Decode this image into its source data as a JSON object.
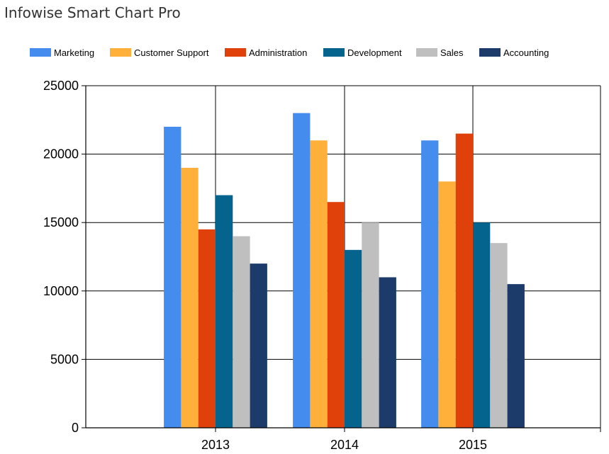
{
  "page": {
    "title": "Infowise Smart Chart Pro"
  },
  "chart_data": {
    "type": "bar",
    "title": "",
    "xlabel": "",
    "ylabel": "",
    "categories": [
      "2013",
      "2014",
      "2015"
    ],
    "ylim": [
      0,
      25000
    ],
    "yticks": [
      0,
      5000,
      10000,
      15000,
      20000,
      25000
    ],
    "grid": true,
    "legend_position": "top",
    "series": [
      {
        "name": "Marketing",
        "color": "#448cee",
        "values": [
          22000,
          23000,
          21000
        ]
      },
      {
        "name": "Customer Support",
        "color": "#ffb03b",
        "values": [
          19000,
          21000,
          18000
        ]
      },
      {
        "name": "Administration",
        "color": "#e0400a",
        "values": [
          14500,
          16500,
          21500
        ]
      },
      {
        "name": "Development",
        "color": "#05648e",
        "values": [
          17000,
          13000,
          15000
        ]
      },
      {
        "name": "Sales",
        "color": "#bfbfbf",
        "values": [
          14000,
          15000,
          13500
        ]
      },
      {
        "name": "Accounting",
        "color": "#1c3a6a",
        "values": [
          12000,
          11000,
          10500
        ]
      }
    ]
  }
}
